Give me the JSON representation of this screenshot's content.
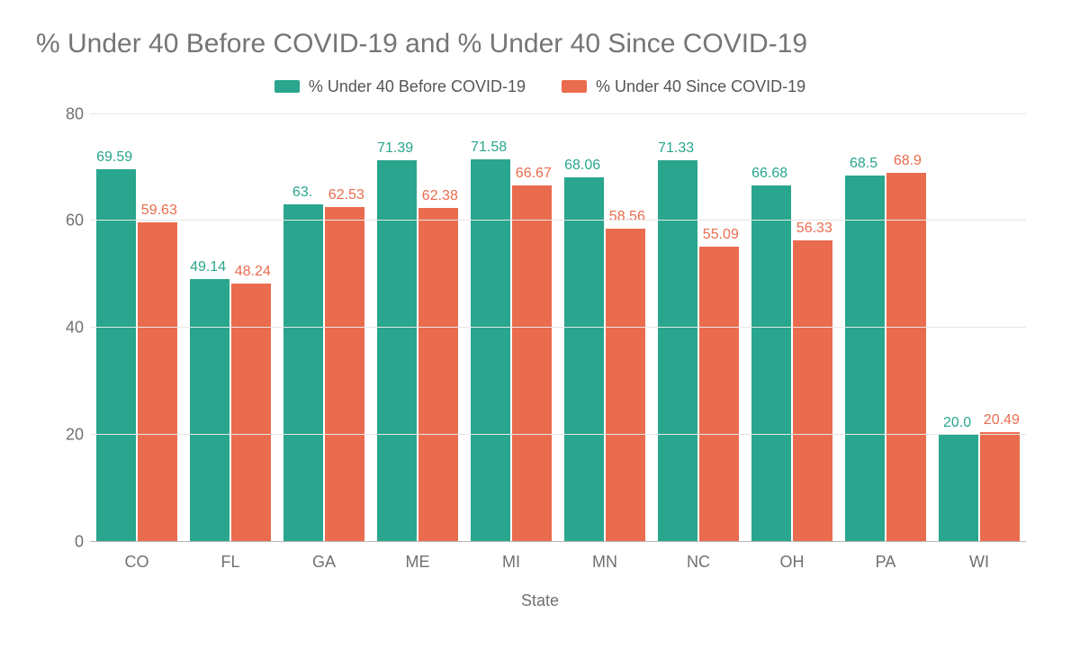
{
  "chart": {
    "type": "bar",
    "title": "% Under 40 Before COVID-19  and % Under 40 Since COVID-19",
    "title_fontsize": 30,
    "title_color": "#757575",
    "x_axis_title": "State",
    "axis_label_fontsize": 18,
    "axis_label_color": "#707070",
    "background_color": "#ffffff",
    "grid_color": "#e6e6e6",
    "baseline_color": "#b5b5b5",
    "data_label_fontsize": 16,
    "bar_width_pct": 42,
    "ylim": [
      0,
      80
    ],
    "ytick_step": 20,
    "yticks": [
      "0",
      "20",
      "40",
      "60",
      "80"
    ],
    "categories": [
      "CO",
      "FL",
      "GA",
      "ME",
      "MI",
      "MN",
      "NC",
      "OH",
      "PA",
      "WI"
    ],
    "series": [
      {
        "name": "% Under 40 Before COVID-19",
        "color": "#29a68d",
        "values": [
          69.59,
          49.14,
          63.1,
          71.39,
          71.58,
          68.06,
          71.33,
          66.68,
          68.5,
          20.0
        ],
        "display_labels": [
          "69.59",
          "49.14",
          "63.",
          "71.39",
          "71.58",
          "68.06",
          "71.33",
          "66.68",
          "68.5",
          "20.0"
        ]
      },
      {
        "name": "% Under 40 Since COVID-19",
        "color": "#ea6c4e",
        "values": [
          59.63,
          48.24,
          62.53,
          62.38,
          66.67,
          58.56,
          55.09,
          56.33,
          68.9,
          20.49
        ],
        "display_labels": [
          "59.63",
          "48.24",
          "62.53",
          "62.38",
          "66.67",
          "58.56",
          "55.09",
          "56.33",
          "68.9",
          "20.49"
        ]
      }
    ],
    "legend": {
      "position": "top-center",
      "fontsize": 18,
      "text_color": "#555555"
    }
  }
}
